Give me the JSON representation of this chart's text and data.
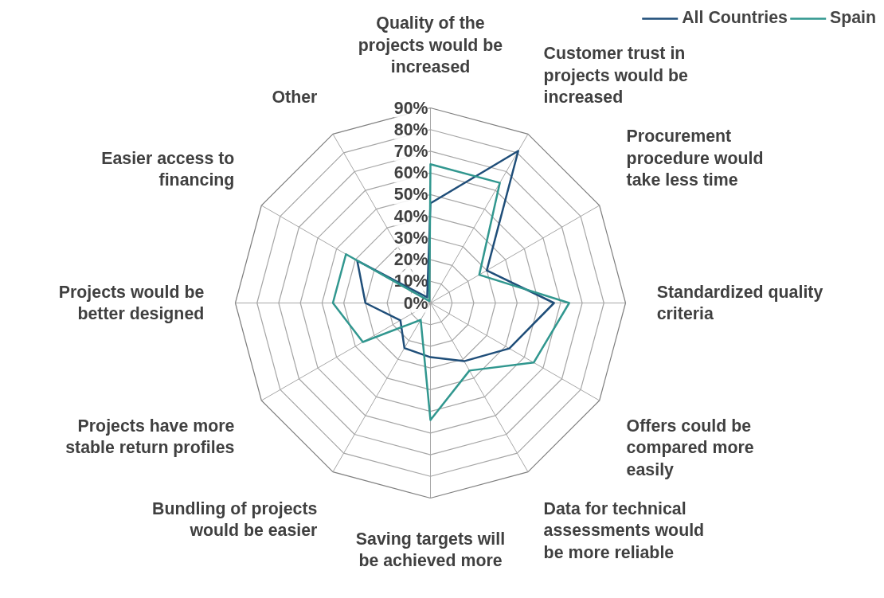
{
  "chart_data": {
    "type": "radar",
    "categories": [
      "Quality of the\nprojects would be\nincreased",
      "Customer trust in\nprojects would be\nincreased",
      "Procurement\nprocedure would\ntake less time",
      "Standardized quality\ncriteria",
      "Offers could be\ncompared more\neasily",
      "Data for technical\nassessments would\nbe more reliable",
      "Saving targets will\nbe achieved more",
      "Bundling of projects\nwould be easier",
      "Projects have more\nstable return profiles",
      "Projects would be\nbetter designed",
      "Easier access to\nfinancing",
      "Other"
    ],
    "series": [
      {
        "name": "All Countries",
        "color": "#1f4e79",
        "values": [
          46,
          81,
          30,
          57,
          42,
          31,
          25,
          24,
          16,
          30,
          39,
          3
        ]
      },
      {
        "name": "Spain",
        "color": "#31978f",
        "values": [
          64,
          64,
          26,
          64,
          55,
          36,
          54,
          9,
          36,
          45,
          45,
          1
        ]
      }
    ],
    "ylim": [
      0,
      90
    ],
    "yticks": [
      {
        "value": 0,
        "label": "0%"
      },
      {
        "value": 10,
        "label": "10%"
      },
      {
        "value": 20,
        "label": "20%"
      },
      {
        "value": 30,
        "label": "30%"
      },
      {
        "value": 40,
        "label": "40%"
      },
      {
        "value": 50,
        "label": "50%"
      },
      {
        "value": 60,
        "label": "60%"
      },
      {
        "value": 70,
        "label": "70%"
      },
      {
        "value": 80,
        "label": "80%"
      },
      {
        "value": 90,
        "label": "90%"
      }
    ],
    "legend": "top right"
  }
}
